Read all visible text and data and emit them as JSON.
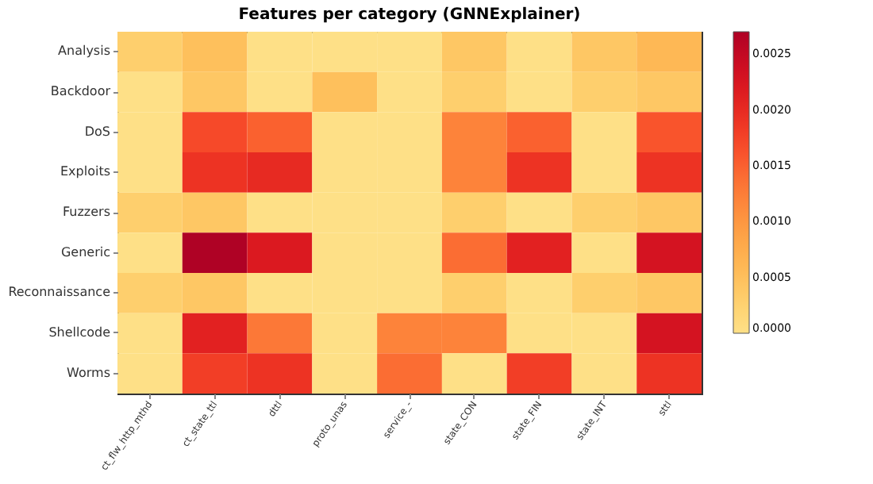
{
  "chart_data": {
    "type": "heatmap",
    "title": "Features per category (GNNExplainer)",
    "categories": [
      "ct_flw_http_mthd",
      "ct_state_ttl",
      "dttl",
      "proto_unas",
      "service_-",
      "state_CON",
      "state_FIN",
      "state_INT",
      "sttl"
    ],
    "y_categories": [
      "Analysis",
      "Backdoor",
      "DoS",
      "Exploits",
      "Fuzzers",
      "Generic",
      "Reconnaissance",
      "Shellcode",
      "Worms"
    ],
    "cells": [
      [
        0.0003,
        0.0005,
        0,
        0,
        0,
        0.0004,
        0,
        0.0004,
        0.0006
      ],
      [
        0,
        0.0004,
        0,
        0.0005,
        0,
        0.0003,
        0,
        0.0003,
        0.0004
      ],
      [
        0,
        0.0017,
        0.0015,
        0,
        0,
        0.0012,
        0.0015,
        0,
        0.0016
      ],
      [
        0,
        0.0019,
        0.002,
        0,
        0,
        0.0012,
        0.0019,
        0,
        0.0019
      ],
      [
        0.0003,
        0.0004,
        0,
        0,
        0,
        0.0003,
        0,
        0.0003,
        0.0004
      ],
      [
        0,
        0.0027,
        0.0022,
        0,
        0,
        0.0014,
        0.0021,
        0,
        0.0023
      ],
      [
        0.0003,
        0.0004,
        0,
        0,
        0,
        0.0003,
        0,
        0.0003,
        0.0004
      ],
      [
        0,
        0.0021,
        0.0013,
        0,
        0.0012,
        0.0012,
        0,
        0,
        0.0023
      ],
      [
        0,
        0.0018,
        0.0019,
        0,
        0.0014,
        0,
        0.0018,
        0,
        0.0019
      ]
    ],
    "clim": [
      0,
      0.0027
    ],
    "cticks": [
      {
        "value": 0,
        "label": "0.0000"
      },
      {
        "value": 0.0005,
        "label": "0.0005"
      },
      {
        "value": 0.001,
        "label": "0.0010"
      },
      {
        "value": 0.0015,
        "label": "0.0015"
      },
      {
        "value": 0.002,
        "label": "0.0020"
      },
      {
        "value": 0.0025,
        "label": "0.0025"
      }
    ]
  }
}
